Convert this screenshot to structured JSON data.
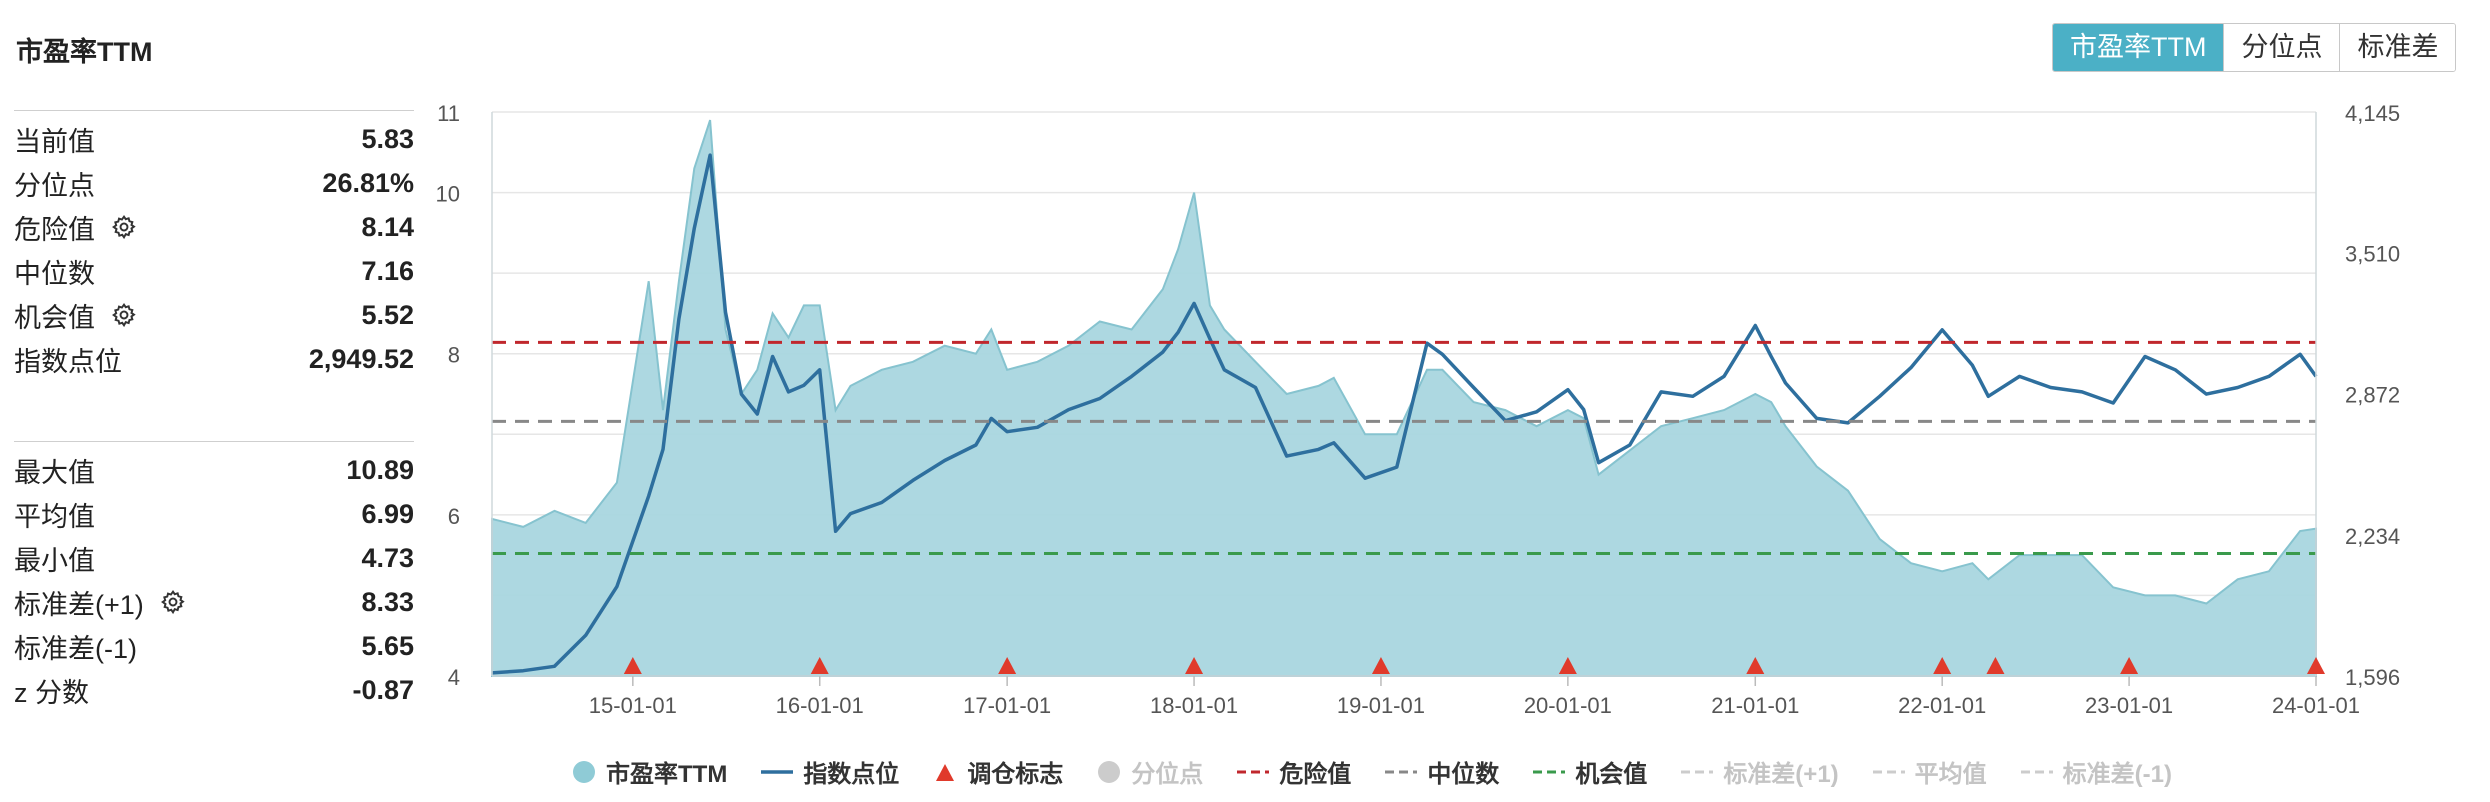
{
  "title": "市盈率TTM",
  "buttons": [
    {
      "label": "市盈率TTM",
      "active": true
    },
    {
      "label": "分位点",
      "active": false
    },
    {
      "label": "标准差",
      "active": false
    }
  ],
  "stats_top": [
    {
      "label": "当前值",
      "value": "5.83",
      "gear": false
    },
    {
      "label": "分位点",
      "value": "26.81%",
      "gear": false
    },
    {
      "label": "危险值",
      "value": "8.14",
      "gear": true
    },
    {
      "label": "中位数",
      "value": "7.16",
      "gear": false
    },
    {
      "label": "机会值",
      "value": "5.52",
      "gear": true
    },
    {
      "label": "指数点位",
      "value": "2,949.52",
      "gear": false
    }
  ],
  "stats_bottom": [
    {
      "label": "最大值",
      "value": "10.89",
      "gear": false
    },
    {
      "label": "平均值",
      "value": "6.99",
      "gear": false
    },
    {
      "label": "最小值",
      "value": "4.73",
      "gear": false
    },
    {
      "label": "标准差(+1)",
      "value": "8.33",
      "gear": true
    },
    {
      "label": "标准差(-1)",
      "value": "5.65",
      "gear": false
    },
    {
      "label": "z 分数",
      "value": "-0.87",
      "gear": false
    }
  ],
  "legend": [
    {
      "label": "市盈率TTM",
      "kind": "area",
      "color": "#8fcbd6",
      "active": true
    },
    {
      "label": "指数点位",
      "kind": "line",
      "color": "#2e6f9e",
      "active": true
    },
    {
      "label": "调仓标志",
      "kind": "triangle",
      "color": "#e03a2b",
      "active": true
    },
    {
      "label": "分位点",
      "kind": "circle",
      "color": "#c8c8c8",
      "active": false
    },
    {
      "label": "危险值",
      "kind": "dash",
      "color": "#c0272d",
      "active": true
    },
    {
      "label": "中位数",
      "kind": "dash",
      "color": "#888888",
      "active": true
    },
    {
      "label": "机会值",
      "kind": "dash",
      "color": "#3a9a4c",
      "active": true
    },
    {
      "label": "标准差(+1)",
      "kind": "dash",
      "color": "#cccccc",
      "active": false
    },
    {
      "label": "平均值",
      "kind": "dash",
      "color": "#cccccc",
      "active": false
    },
    {
      "label": "标准差(-1)",
      "kind": "dash",
      "color": "#cccccc",
      "active": false
    }
  ],
  "chart_data": {
    "type": "area",
    "x_ticks": [
      "15-01-01",
      "16-01-01",
      "17-01-01",
      "18-01-01",
      "19-01-01",
      "20-01-01",
      "21-01-01",
      "22-01-01",
      "23-01-01",
      "24-01-01"
    ],
    "x_range": [
      "2014-04-01",
      "2024-01-01"
    ],
    "y_left_ticks": [
      4,
      6,
      8,
      10,
      11
    ],
    "y_left_range": [
      4,
      11
    ],
    "y_right_ticks": [
      "1,596",
      "2,234",
      "2,872",
      "3,510",
      "4,145"
    ],
    "y_right_range": [
      1596,
      4145
    ],
    "reference_lines": {
      "danger": 8.14,
      "median": 7.16,
      "opportunity": 5.52
    },
    "colors": {
      "pe_area": "#a9d6df",
      "pe_edge": "#86c3cf",
      "index_line": "#2e6f9e",
      "danger": "#c0272d",
      "median": "#888888",
      "opportunity": "#3a9a4c",
      "marker": "#e03a2b"
    },
    "series": [
      {
        "name": "市盈率TTM",
        "axis": "left",
        "x": [
          "2014-04",
          "2014-06",
          "2014-08",
          "2014-10",
          "2014-12",
          "2015-02",
          "2015-03",
          "2015-04",
          "2015-05",
          "2015-06",
          "2015-07",
          "2015-08",
          "2015-09",
          "2015-10",
          "2015-11",
          "2015-12",
          "2016-01",
          "2016-02",
          "2016-03",
          "2016-05",
          "2016-07",
          "2016-09",
          "2016-11",
          "2016-12",
          "2017-01",
          "2017-03",
          "2017-05",
          "2017-07",
          "2017-09",
          "2017-11",
          "2017-12",
          "2018-01",
          "2018-02",
          "2018-03",
          "2018-05",
          "2018-07",
          "2018-09",
          "2018-10",
          "2018-12",
          "2019-02",
          "2019-04",
          "2019-05",
          "2019-07",
          "2019-09",
          "2019-11",
          "2020-01",
          "2020-02",
          "2020-03",
          "2020-05",
          "2020-07",
          "2020-09",
          "2020-11",
          "2021-01",
          "2021-02",
          "2021-03",
          "2021-05",
          "2021-07",
          "2021-09",
          "2021-11",
          "2022-01",
          "2022-03",
          "2022-04",
          "2022-06",
          "2022-08",
          "2022-10",
          "2022-12",
          "2023-02",
          "2023-04",
          "2023-06",
          "2023-08",
          "2023-10",
          "2023-12",
          "2024-01"
        ],
        "values": [
          5.95,
          5.85,
          6.05,
          5.9,
          6.4,
          8.9,
          7.3,
          8.9,
          10.3,
          10.9,
          8.3,
          7.5,
          7.8,
          8.5,
          8.2,
          8.6,
          8.6,
          7.3,
          7.6,
          7.8,
          7.9,
          8.1,
          8.0,
          8.3,
          7.8,
          7.9,
          8.1,
          8.4,
          8.3,
          8.8,
          9.3,
          10.0,
          8.6,
          8.3,
          7.9,
          7.5,
          7.6,
          7.7,
          7.0,
          7.0,
          7.8,
          7.8,
          7.4,
          7.3,
          7.1,
          7.3,
          7.2,
          6.5,
          6.8,
          7.1,
          7.2,
          7.3,
          7.5,
          7.4,
          7.1,
          6.6,
          6.3,
          5.7,
          5.4,
          5.3,
          5.4,
          5.2,
          5.5,
          5.5,
          5.5,
          5.1,
          5.0,
          5.0,
          4.9,
          5.2,
          5.3,
          5.8,
          5.83
        ]
      },
      {
        "name": "指数点位",
        "axis": "right",
        "x": [
          "2014-04",
          "2014-06",
          "2014-08",
          "2014-10",
          "2014-12",
          "2015-02",
          "2015-03",
          "2015-04",
          "2015-05",
          "2015-06",
          "2015-07",
          "2015-08",
          "2015-09",
          "2015-10",
          "2015-11",
          "2015-12",
          "2016-01",
          "2016-02",
          "2016-03",
          "2016-05",
          "2016-07",
          "2016-09",
          "2016-11",
          "2016-12",
          "2017-01",
          "2017-03",
          "2017-05",
          "2017-07",
          "2017-09",
          "2017-11",
          "2017-12",
          "2018-01",
          "2018-02",
          "2018-03",
          "2018-05",
          "2018-07",
          "2018-09",
          "2018-10",
          "2018-12",
          "2019-02",
          "2019-04",
          "2019-05",
          "2019-07",
          "2019-09",
          "2019-11",
          "2020-01",
          "2020-02",
          "2020-03",
          "2020-05",
          "2020-07",
          "2020-09",
          "2020-11",
          "2021-01",
          "2021-02",
          "2021-03",
          "2021-05",
          "2021-07",
          "2021-09",
          "2021-11",
          "2022-01",
          "2022-03",
          "2022-04",
          "2022-06",
          "2022-08",
          "2022-10",
          "2022-12",
          "2023-02",
          "2023-04",
          "2023-06",
          "2023-08",
          "2023-10",
          "2023-12",
          "2024-01"
        ],
        "values": [
          1610,
          1620,
          1640,
          1780,
          2000,
          2410,
          2620,
          3210,
          3620,
          3950,
          3240,
          2870,
          2780,
          3040,
          2880,
          2910,
          2980,
          2250,
          2330,
          2380,
          2480,
          2570,
          2640,
          2760,
          2700,
          2720,
          2800,
          2850,
          2950,
          3060,
          3150,
          3280,
          3120,
          2980,
          2900,
          2590,
          2620,
          2650,
          2490,
          2540,
          3100,
          3050,
          2900,
          2750,
          2790,
          2890,
          2800,
          2560,
          2640,
          2880,
          2860,
          2950,
          3180,
          3040,
          2920,
          2760,
          2740,
          2860,
          2990,
          3160,
          3000,
          2860,
          2950,
          2900,
          2880,
          2830,
          3040,
          2980,
          2870,
          2900,
          2950,
          3050,
          2950
        ]
      },
      {
        "name": "调仓标志",
        "axis": "bottom",
        "x": [
          "2015-01-01",
          "2016-01-01",
          "2017-01-01",
          "2018-01-01",
          "2019-01-01",
          "2020-01-01",
          "2021-01-01",
          "2022-01-01",
          "2022-04-15",
          "2023-01-01",
          "2024-01-01"
        ]
      }
    ]
  }
}
